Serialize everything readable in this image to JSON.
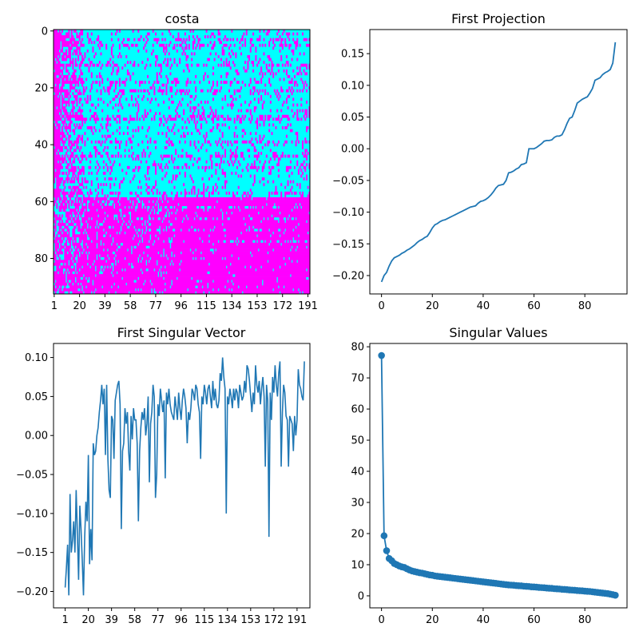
{
  "chart_data": [
    {
      "type": "heatmap",
      "title": "costa",
      "colormap": [
        "#00ffff",
        "#ff00ff"
      ],
      "rows": 93,
      "cols": 192,
      "xticks": [
        1,
        20,
        39,
        58,
        77,
        96,
        115,
        134,
        153,
        172,
        191
      ],
      "yticks": [
        0,
        20,
        40,
        60,
        80
      ],
      "ylim": [
        92.5,
        -0.5
      ],
      "xlim": [
        0.5,
        192.5
      ]
    },
    {
      "type": "line",
      "title": "First Projection",
      "color": "#1f77b4",
      "xlim": [
        -4.6,
        96.6
      ],
      "ylim": [
        -0.229,
        0.188
      ],
      "xticks": [
        0,
        20,
        40,
        60,
        80
      ],
      "yticks": [
        -0.2,
        -0.15,
        -0.1,
        -0.05,
        0.0,
        0.05,
        0.1,
        0.15
      ],
      "ytick_labels": [
        "−0.20",
        "−0.15",
        "−0.10",
        "−0.05",
        "0.00",
        "0.05",
        "0.10",
        "0.15"
      ],
      "x": [
        0,
        1,
        2,
        3,
        4,
        5,
        6,
        7,
        8,
        9,
        10,
        11,
        12,
        13,
        14,
        15,
        16,
        17,
        18,
        19,
        20,
        21,
        22,
        23,
        24,
        25,
        26,
        27,
        28,
        29,
        30,
        31,
        32,
        33,
        34,
        35,
        36,
        37,
        38,
        39,
        40,
        41,
        42,
        43,
        44,
        45,
        46,
        47,
        48,
        49,
        50,
        51,
        52,
        53,
        54,
        55,
        56,
        57,
        58,
        59,
        60,
        61,
        62,
        63,
        64,
        65,
        66,
        67,
        68,
        69,
        70,
        71,
        72,
        73,
        74,
        75,
        76,
        77,
        78,
        79,
        80,
        81,
        82,
        83,
        84,
        85,
        86,
        87,
        88,
        89,
        90,
        91,
        92
      ],
      "y": [
        -0.21,
        -0.2,
        -0.195,
        -0.185,
        -0.177,
        -0.172,
        -0.17,
        -0.168,
        -0.165,
        -0.163,
        -0.16,
        -0.158,
        -0.155,
        -0.152,
        -0.148,
        -0.145,
        -0.143,
        -0.14,
        -0.138,
        -0.132,
        -0.125,
        -0.12,
        -0.118,
        -0.115,
        -0.113,
        -0.112,
        -0.11,
        -0.108,
        -0.106,
        -0.104,
        -0.102,
        -0.1,
        -0.098,
        -0.096,
        -0.094,
        -0.092,
        -0.091,
        -0.09,
        -0.086,
        -0.083,
        -0.082,
        -0.08,
        -0.077,
        -0.073,
        -0.068,
        -0.062,
        -0.058,
        -0.057,
        -0.056,
        -0.05,
        -0.038,
        -0.037,
        -0.035,
        -0.032,
        -0.03,
        -0.025,
        -0.024,
        -0.022,
        0.0,
        0.0,
        0.0,
        0.002,
        0.005,
        0.008,
        0.012,
        0.013,
        0.013,
        0.014,
        0.018,
        0.02,
        0.02,
        0.022,
        0.03,
        0.04,
        0.048,
        0.05,
        0.06,
        0.072,
        0.075,
        0.078,
        0.08,
        0.082,
        0.088,
        0.095,
        0.108,
        0.11,
        0.112,
        0.117,
        0.12,
        0.122,
        0.125,
        0.135,
        0.168
      ]
    },
    {
      "type": "line",
      "title": "First Singular Vector",
      "color": "#1f77b4",
      "xlim": [
        -8.55,
        201.55
      ],
      "ylim": [
        -0.221,
        0.118
      ],
      "xticks": [
        1,
        20,
        39,
        58,
        77,
        96,
        115,
        134,
        153,
        172,
        191
      ],
      "yticks": [
        -0.2,
        -0.15,
        -0.1,
        -0.05,
        0.0,
        0.05,
        0.1
      ],
      "ytick_labels": [
        "−0.20",
        "−0.15",
        "−0.10",
        "−0.05",
        "0.00",
        "0.05",
        "0.10"
      ],
      "x_start": 1,
      "y": [
        -0.195,
        -0.17,
        -0.14,
        -0.205,
        -0.075,
        -0.15,
        -0.135,
        -0.11,
        -0.15,
        -0.07,
        -0.125,
        -0.185,
        -0.09,
        -0.12,
        -0.16,
        -0.205,
        -0.13,
        -0.085,
        -0.11,
        -0.025,
        -0.165,
        -0.12,
        -0.16,
        -0.01,
        -0.025,
        -0.02,
        0.0,
        0.01,
        0.03,
        0.045,
        0.065,
        0.04,
        0.06,
        -0.025,
        0.065,
        -0.03,
        -0.07,
        -0.08,
        0.025,
        0.02,
        -0.03,
        0.045,
        0.055,
        0.065,
        0.07,
        0.04,
        -0.12,
        -0.02,
        -0.01,
        0.035,
        0.015,
        0.03,
        -0.02,
        -0.045,
        0.025,
        -0.005,
        0.035,
        0.02,
        0.02,
        -0.01,
        -0.11,
        -0.02,
        0.01,
        0.03,
        0.02,
        0.035,
        0.0,
        0.015,
        0.05,
        -0.06,
        0.015,
        0.03,
        0.065,
        0.05,
        -0.08,
        -0.05,
        0.04,
        0.025,
        0.06,
        0.045,
        0.03,
        0.045,
        -0.055,
        0.055,
        0.04,
        0.06,
        0.04,
        0.03,
        0.025,
        0.02,
        0.05,
        0.035,
        0.02,
        0.055,
        0.035,
        0.02,
        0.045,
        0.06,
        0.05,
        0.035,
        -0.01,
        0.03,
        0.02,
        0.035,
        0.06,
        0.055,
        0.045,
        0.065,
        0.06,
        0.04,
        0.03,
        -0.03,
        0.05,
        0.04,
        0.065,
        0.055,
        0.04,
        0.06,
        0.065,
        0.05,
        0.035,
        0.07,
        0.045,
        0.06,
        0.04,
        0.035,
        0.045,
        0.08,
        0.07,
        0.1,
        0.075,
        0.06,
        -0.1,
        0.05,
        0.04,
        0.06,
        0.05,
        0.035,
        0.06,
        0.045,
        0.06,
        0.055,
        0.035,
        0.065,
        0.055,
        0.045,
        0.05,
        0.07,
        0.055,
        0.09,
        0.085,
        0.07,
        0.05,
        0.03,
        0.055,
        0.04,
        0.09,
        0.065,
        0.055,
        0.07,
        0.04,
        0.06,
        0.075,
        0.05,
        -0.04,
        0.065,
        0.045,
        -0.13,
        0.055,
        0.02,
        0.075,
        0.055,
        0.09,
        0.065,
        0.05,
        0.08,
        0.095,
        -0.04,
        0.03,
        0.065,
        0.055,
        0.025,
        0.02,
        -0.04,
        0.025,
        0.02,
        0.015,
        -0.02,
        0.025,
        0.0,
        0.02,
        0.085,
        0.065,
        0.06,
        0.05,
        0.045,
        0.095
      ]
    },
    {
      "type": "line",
      "title": "Singular Values",
      "color": "#1f77b4",
      "markers": true,
      "xlim": [
        -4.6,
        96.6
      ],
      "ylim": [
        -3.86,
        81.06
      ],
      "xticks": [
        0,
        20,
        40,
        60,
        80
      ],
      "yticks": [
        0,
        10,
        20,
        30,
        40,
        50,
        60,
        70,
        80
      ],
      "y": [
        77.2,
        19.3,
        14.5,
        12.0,
        11.3,
        10.4,
        10.0,
        9.6,
        9.3,
        9.1,
        8.7,
        8.3,
        8.0,
        7.8,
        7.6,
        7.4,
        7.3,
        7.1,
        6.9,
        6.7,
        6.6,
        6.4,
        6.3,
        6.2,
        6.1,
        6.0,
        5.9,
        5.8,
        5.7,
        5.6,
        5.5,
        5.4,
        5.3,
        5.2,
        5.1,
        5.0,
        4.9,
        4.8,
        4.7,
        4.6,
        4.5,
        4.4,
        4.3,
        4.2,
        4.1,
        4.0,
        3.9,
        3.8,
        3.7,
        3.6,
        3.5,
        3.45,
        3.4,
        3.3,
        3.25,
        3.2,
        3.1,
        3.05,
        3.0,
        2.9,
        2.85,
        2.8,
        2.7,
        2.65,
        2.6,
        2.5,
        2.45,
        2.4,
        2.3,
        2.25,
        2.2,
        2.1,
        2.05,
        2.0,
        1.9,
        1.85,
        1.8,
        1.7,
        1.65,
        1.6,
        1.5,
        1.45,
        1.4,
        1.3,
        1.2,
        1.1,
        1.0,
        0.9,
        0.8,
        0.7,
        0.55,
        0.4,
        0.2
      ]
    }
  ]
}
